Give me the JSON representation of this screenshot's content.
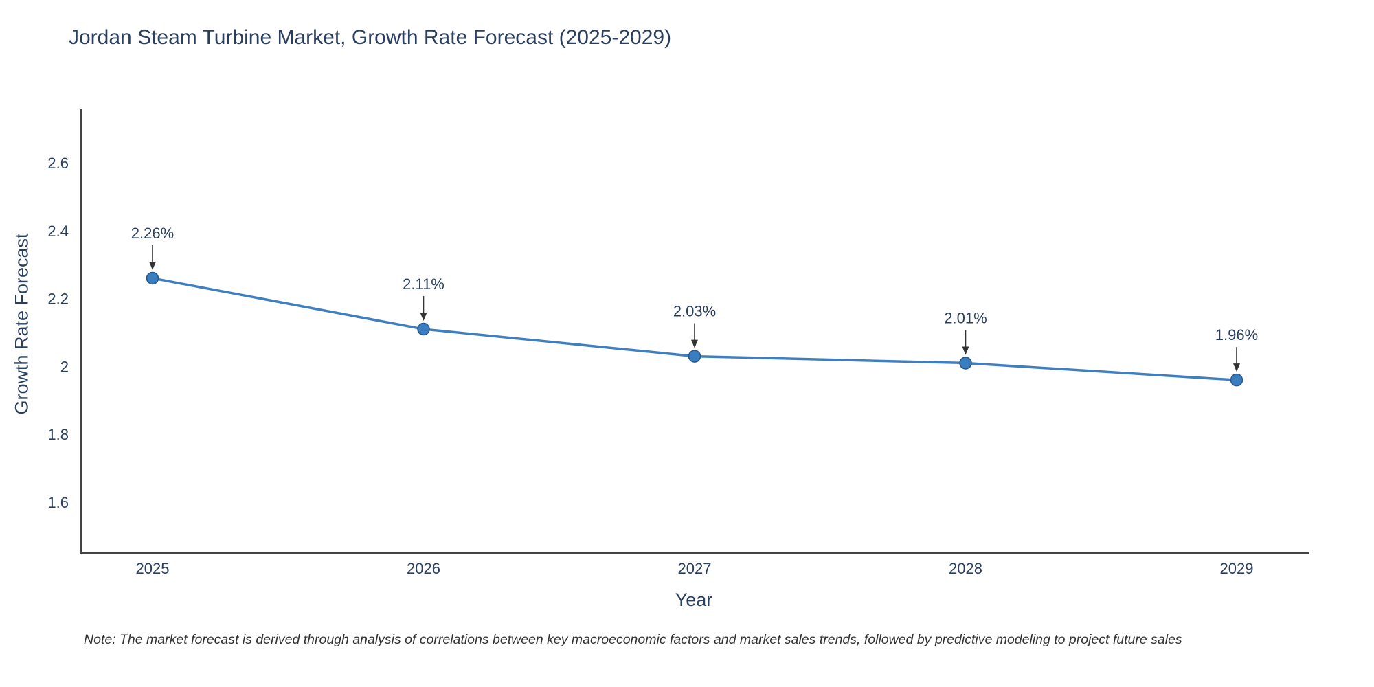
{
  "title": "Jordan Steam Turbine Market, Growth Rate Forecast (2025-2029)",
  "note": "Note: The market forecast is derived through analysis of correlations between key macroeconomic factors and market sales trends, followed by predictive modeling to project future sales",
  "chart_data": {
    "type": "line",
    "title": "Jordan Steam Turbine Market, Growth Rate Forecast (2025-2029)",
    "xlabel": "Year",
    "ylabel": "Growth Rate Forecast",
    "categories": [
      "2025",
      "2026",
      "2027",
      "2028",
      "2029"
    ],
    "series": [
      {
        "name": "Growth Rate Forecast",
        "values": [
          2.26,
          2.11,
          2.03,
          2.01,
          1.96
        ],
        "point_labels": [
          "2.26%",
          "2.11%",
          "2.03%",
          "2.01%",
          "1.96%"
        ]
      }
    ],
    "yticks": [
      1.6,
      1.8,
      2.0,
      2.2,
      2.4,
      2.6
    ],
    "ylim": [
      1.45,
      2.76
    ],
    "grid": false,
    "legend_position": "none",
    "colors": {
      "line": "#3f7fbf",
      "marker_fill": "#3a7ebf",
      "marker_edge": "#24578c",
      "axis": "#444444",
      "text": "#2a3f5f",
      "annotation_arrow": "#333333"
    }
  }
}
